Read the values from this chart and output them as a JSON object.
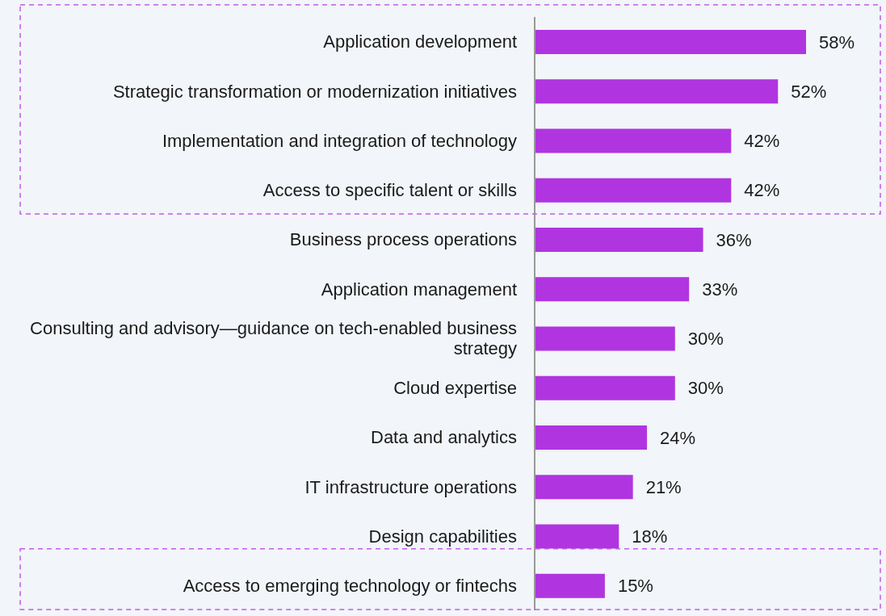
{
  "chart_data": {
    "type": "bar",
    "orientation": "horizontal",
    "categories": [
      "Application development",
      "Strategic transformation or modernization initiatives",
      "Implementation and integration of technology",
      "Access to specific talent or skills",
      "Business process operations",
      "Application management",
      "Consulting and advisory—guidance on tech-enabled business strategy",
      "Cloud expertise",
      "Data and analytics",
      "IT infrastructure operations",
      "Design capabilities",
      "Access to emerging technology or fintechs"
    ],
    "values": [
      58,
      52,
      42,
      42,
      36,
      33,
      30,
      30,
      24,
      21,
      18,
      15
    ],
    "value_labels": [
      "58%",
      "52%",
      "42%",
      "42%",
      "36%",
      "33%",
      "30%",
      "30%",
      "24%",
      "21%",
      "18%",
      "15%"
    ],
    "color": "#b035e0"
  }
}
